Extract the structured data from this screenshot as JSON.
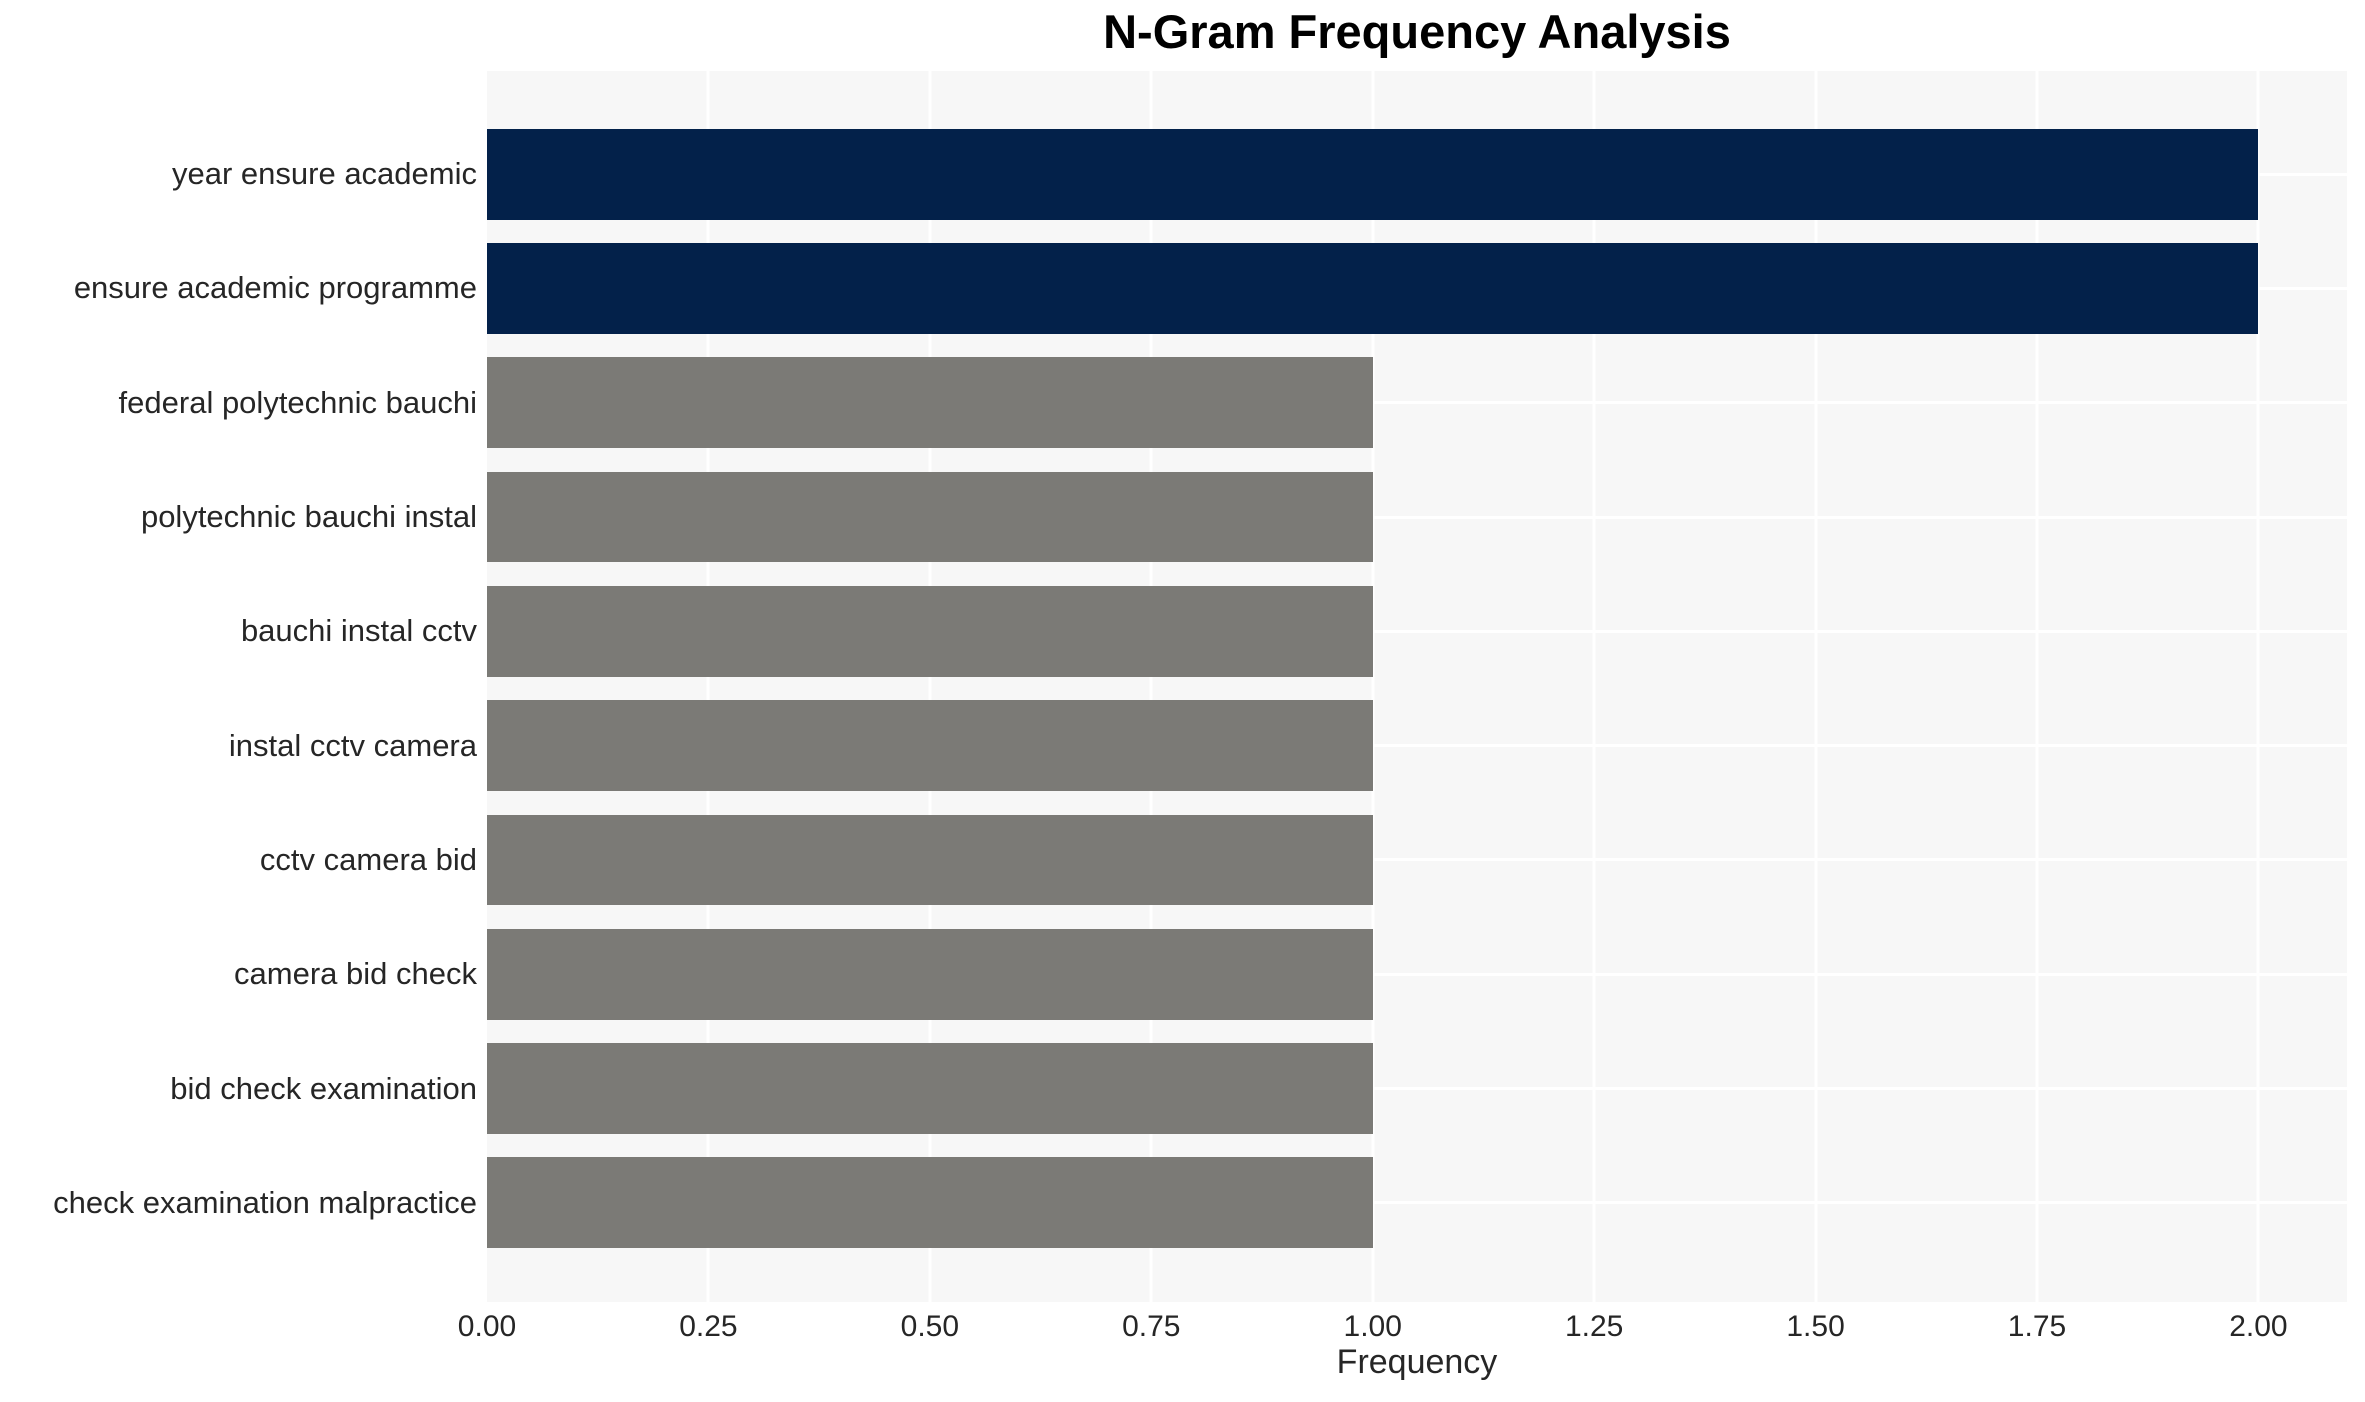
{
  "chart_data": {
    "type": "bar",
    "orientation": "horizontal",
    "title": "N-Gram Frequency Analysis",
    "xlabel": "Frequency",
    "ylabel": "",
    "categories": [
      "year ensure academic",
      "ensure academic programme",
      "federal polytechnic bauchi",
      "polytechnic bauchi instal",
      "bauchi instal cctv",
      "instal cctv camera",
      "cctv camera bid",
      "camera bid check",
      "bid check examination",
      "check examination malpractice"
    ],
    "values": [
      2,
      2,
      1,
      1,
      1,
      1,
      1,
      1,
      1,
      1
    ],
    "bar_colors": [
      "#03214a",
      "#03214a",
      "#7b7a76",
      "#7b7a76",
      "#7b7a76",
      "#7b7a76",
      "#7b7a76",
      "#7b7a76",
      "#7b7a76",
      "#7b7a76"
    ],
    "xlim": [
      0,
      2.1
    ],
    "xticks": [
      0,
      0.25,
      0.5,
      0.75,
      1.0,
      1.25,
      1.5,
      1.75,
      2.0
    ],
    "xtick_labels": [
      "0.00",
      "0.25",
      "0.50",
      "0.75",
      "1.00",
      "1.25",
      "1.50",
      "1.75",
      "2.00"
    ],
    "grid": true,
    "gridline_color": "#ffffff",
    "plot_background": "#f7f7f7",
    "figure_background": "#ffffff",
    "text_color": "#262626",
    "title_color": "#000000",
    "legend": false
  }
}
